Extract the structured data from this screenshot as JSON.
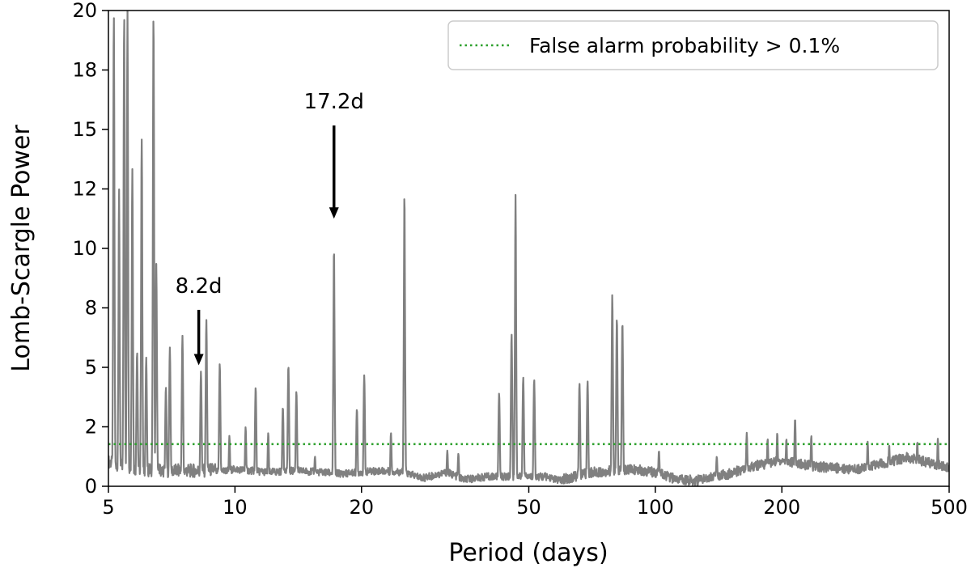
{
  "chart_data": {
    "type": "line",
    "xlabel": "Period (days)",
    "ylabel": "Lomb-Scargle Power",
    "xscale": "log",
    "xlim": [
      5,
      500
    ],
    "ylim": [
      0,
      20
    ],
    "xticks": [
      5,
      10,
      20,
      50,
      100,
      200,
      500
    ],
    "xtick_labels": [
      "5",
      "10",
      "20",
      "50",
      "100",
      "200",
      "500"
    ],
    "yticks": [
      0,
      2,
      5,
      8,
      10,
      12,
      15,
      18,
      20
    ],
    "ytick_labels": [
      "0",
      "2",
      "5",
      "8",
      "10",
      "12",
      "15",
      "18",
      "20"
    ],
    "grid": false,
    "legend": {
      "placement": "top-right",
      "entries": [
        "False alarm probability > 0.1%"
      ]
    },
    "colors": {
      "series": "#808080",
      "threshold": "#2ca02c",
      "arrow": "#000000"
    },
    "series": [
      {
        "style": "solid",
        "baseline": [
          [
            5.0,
            0.6
          ],
          [
            5.8,
            0.35
          ],
          [
            7.0,
            0.3
          ],
          [
            8.5,
            0.3
          ],
          [
            10,
            0.45
          ],
          [
            12,
            0.35
          ],
          [
            14,
            0.4
          ],
          [
            16,
            0.35
          ],
          [
            18,
            0.3
          ],
          [
            22,
            0.4
          ],
          [
            25,
            0.35
          ],
          [
            28,
            0.15
          ],
          [
            32,
            0.35
          ],
          [
            35,
            0.1
          ],
          [
            40,
            0.2
          ],
          [
            55,
            0.2
          ],
          [
            60,
            0.05
          ],
          [
            70,
            0.3
          ],
          [
            90,
            0.4
          ],
          [
            100,
            0.3
          ],
          [
            110,
            0.1
          ],
          [
            125,
            0.02
          ],
          [
            135,
            0.15
          ],
          [
            150,
            0.25
          ],
          [
            170,
            0.5
          ],
          [
            200,
            0.7
          ],
          [
            240,
            0.5
          ],
          [
            300,
            0.4
          ],
          [
            400,
            0.8
          ],
          [
            500,
            0.45
          ]
        ],
        "peaks": [
          [
            5.15,
            20.0
          ],
          [
            5.3,
            12.0
          ],
          [
            5.45,
            20.0
          ],
          [
            5.55,
            20.0
          ],
          [
            5.7,
            13.0
          ],
          [
            5.85,
            5.8
          ],
          [
            6.0,
            14.5
          ],
          [
            6.15,
            5.5
          ],
          [
            6.4,
            20.0
          ],
          [
            6.5,
            9.5
          ],
          [
            6.85,
            4.0
          ],
          [
            7.0,
            6.0
          ],
          [
            7.5,
            6.6
          ],
          [
            8.3,
            4.8
          ],
          [
            8.55,
            7.4
          ],
          [
            9.2,
            5.2
          ],
          [
            9.7,
            1.7
          ],
          [
            10.6,
            2.0
          ],
          [
            11.2,
            4.0
          ],
          [
            12.0,
            1.8
          ],
          [
            13.0,
            3.0
          ],
          [
            13.4,
            5.1
          ],
          [
            14.0,
            3.8
          ],
          [
            15.5,
            1.0
          ],
          [
            17.2,
            10.1
          ],
          [
            19.5,
            2.9
          ],
          [
            20.3,
            4.6
          ],
          [
            23.5,
            1.8
          ],
          [
            25.3,
            11.9
          ],
          [
            32.0,
            1.2
          ],
          [
            34.0,
            1.1
          ],
          [
            42.5,
            3.7
          ],
          [
            45.5,
            6.7
          ],
          [
            46.5,
            11.8
          ],
          [
            48.5,
            4.5
          ],
          [
            51.5,
            4.4
          ],
          [
            66.0,
            4.2
          ],
          [
            69.0,
            4.3
          ],
          [
            79.0,
            8.5
          ],
          [
            81.0,
            7.5
          ],
          [
            83.5,
            7.3
          ],
          [
            102,
            1.2
          ],
          [
            140,
            1.0
          ],
          [
            165,
            1.8
          ],
          [
            185,
            1.6
          ],
          [
            195,
            1.8
          ],
          [
            205,
            1.6
          ],
          [
            215,
            2.4
          ],
          [
            235,
            1.7
          ],
          [
            320,
            1.5
          ],
          [
            360,
            1.4
          ],
          [
            420,
            1.5
          ],
          [
            470,
            1.6
          ]
        ]
      }
    ],
    "threshold": {
      "y": 1.42,
      "label": "False alarm probability > 0.1%"
    },
    "annotations": [
      {
        "text": "8.2d",
        "x": 8.2,
        "y_from": 7.9,
        "y_to": 5.1
      },
      {
        "text": "17.2d",
        "x": 17.2,
        "y_from": 15.2,
        "y_to": 11.0
      }
    ]
  }
}
